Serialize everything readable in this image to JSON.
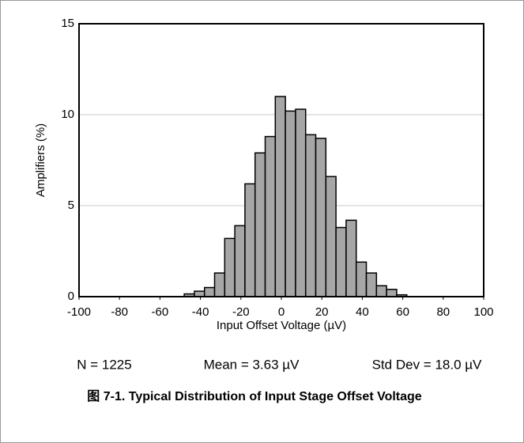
{
  "chart_data": {
    "type": "histogram",
    "xlabel": "Input Offset Voltage (µV)",
    "ylabel": "Amplifiers (%)",
    "bins": [
      -48,
      -43,
      -38,
      -33,
      -28,
      -23,
      -18,
      -13,
      -8,
      -3,
      2,
      7,
      12,
      17,
      22,
      27,
      32,
      37,
      42,
      47,
      52,
      57,
      62
    ],
    "values": [
      0.15,
      0.3,
      0.5,
      1.3,
      3.2,
      3.9,
      6.2,
      7.9,
      8.8,
      11.0,
      10.2,
      10.3,
      8.9,
      8.7,
      6.6,
      3.8,
      4.2,
      1.9,
      1.3,
      0.6,
      0.4,
      0.1
    ],
    "color": "#a6a6a6",
    "xlim": [
      -100,
      100
    ],
    "xticks": [
      -100,
      -80,
      -60,
      -40,
      -20,
      0,
      20,
      40,
      60,
      80,
      100
    ],
    "ylim": [
      0,
      15
    ],
    "yticks": [
      0,
      5,
      10,
      15
    ],
    "grid": true,
    "annotations": [
      "N = 1225",
      "Mean = 3.63 µV",
      "Std Dev = 18.0 µV"
    ],
    "caption": "图 7-1. Typical Distribution of Input Stage Offset Voltage"
  }
}
